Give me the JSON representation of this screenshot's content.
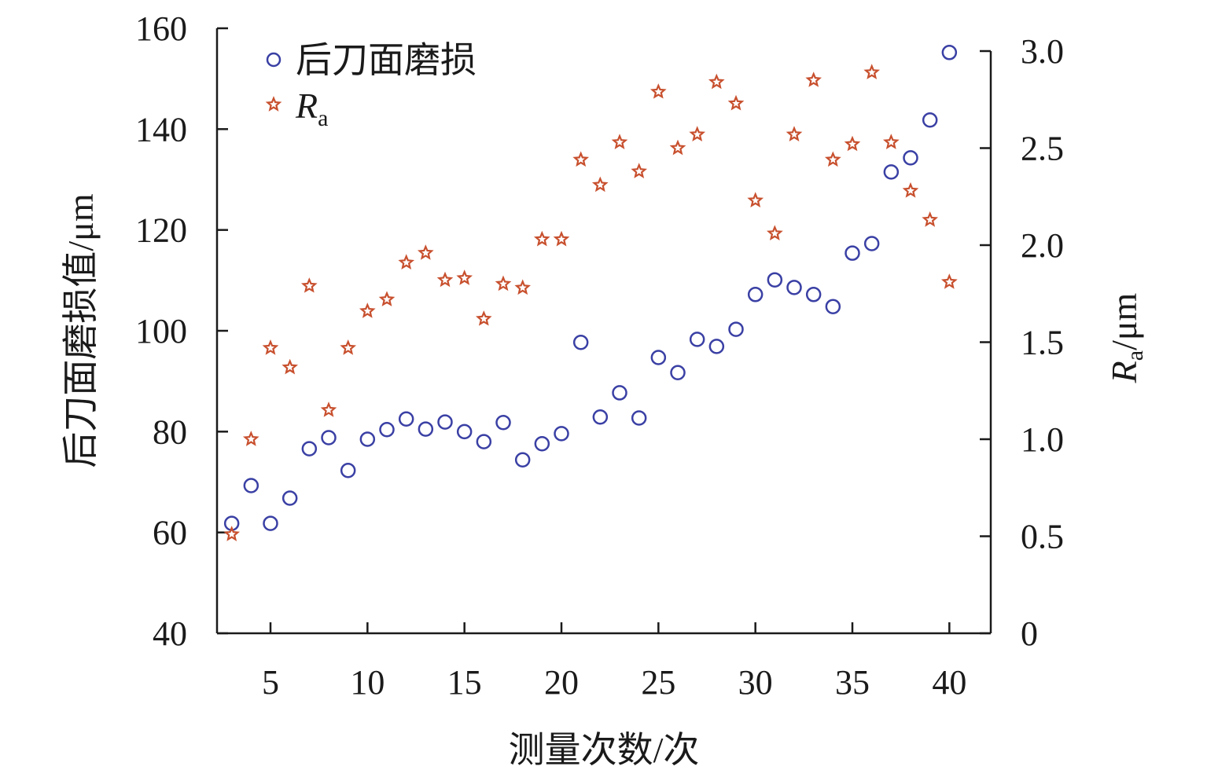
{
  "chart_data": {
    "type": "scatter",
    "xlabel": "测量次数/次",
    "ylabel_left": "后刀面磨损值/μm",
    "ylabel_right": {
      "main": "R",
      "sub": "a",
      "unit": "/μm"
    },
    "xlim": [
      2.3,
      42
    ],
    "ylim_left": [
      40,
      160
    ],
    "ylim_right": [
      0,
      3.0
    ],
    "x_ticks": [
      "5",
      "10",
      "15",
      "20",
      "25",
      "30",
      "35",
      "40"
    ],
    "y_left_ticks": [
      "40",
      "60",
      "80",
      "100",
      "120",
      "140",
      "160"
    ],
    "y_right_ticks": [
      "0",
      "0.5",
      "1.0",
      "1.5",
      "2.0",
      "2.5",
      "3.0"
    ],
    "legend_position": "top-left",
    "grid": false,
    "x": [
      3,
      4,
      5,
      6,
      7,
      8,
      9,
      10,
      11,
      12,
      13,
      14,
      15,
      16,
      17,
      18,
      19,
      20,
      21,
      22,
      23,
      24,
      25,
      26,
      27,
      28,
      29,
      30,
      31,
      32,
      33,
      34,
      35,
      36,
      37,
      38,
      39,
      40
    ],
    "series": [
      {
        "name": "后刀面磨损",
        "axis": "left",
        "marker": "circle",
        "color": "#3a40a4",
        "values": [
          61.8,
          69.3,
          61.8,
          66.8,
          76.6,
          78.8,
          72.3,
          78.5,
          80.4,
          82.5,
          80.5,
          81.9,
          80.0,
          78.0,
          81.8,
          74.4,
          77.6,
          79.6,
          97.7,
          82.9,
          87.7,
          82.7,
          94.7,
          91.7,
          98.3,
          96.9,
          100.3,
          107.2,
          110.1,
          108.6,
          107.2,
          104.8,
          115.4,
          117.3,
          131.5,
          134.3,
          141.8,
          155.2
        ]
      },
      {
        "name": "Ra",
        "name_main": "R",
        "name_sub": "a",
        "axis": "right",
        "marker": "star",
        "color": "#c8502e",
        "values": [
          0.51,
          1.0,
          1.47,
          1.37,
          1.79,
          1.15,
          1.47,
          1.66,
          1.72,
          1.91,
          1.96,
          1.82,
          1.83,
          1.62,
          1.8,
          1.78,
          2.03,
          2.03,
          2.44,
          2.31,
          2.53,
          2.38,
          2.79,
          2.5,
          2.57,
          2.84,
          2.73,
          2.23,
          2.06,
          2.57,
          2.85,
          2.44,
          2.52,
          2.89,
          2.53,
          2.28,
          2.13,
          1.81
        ]
      }
    ]
  }
}
